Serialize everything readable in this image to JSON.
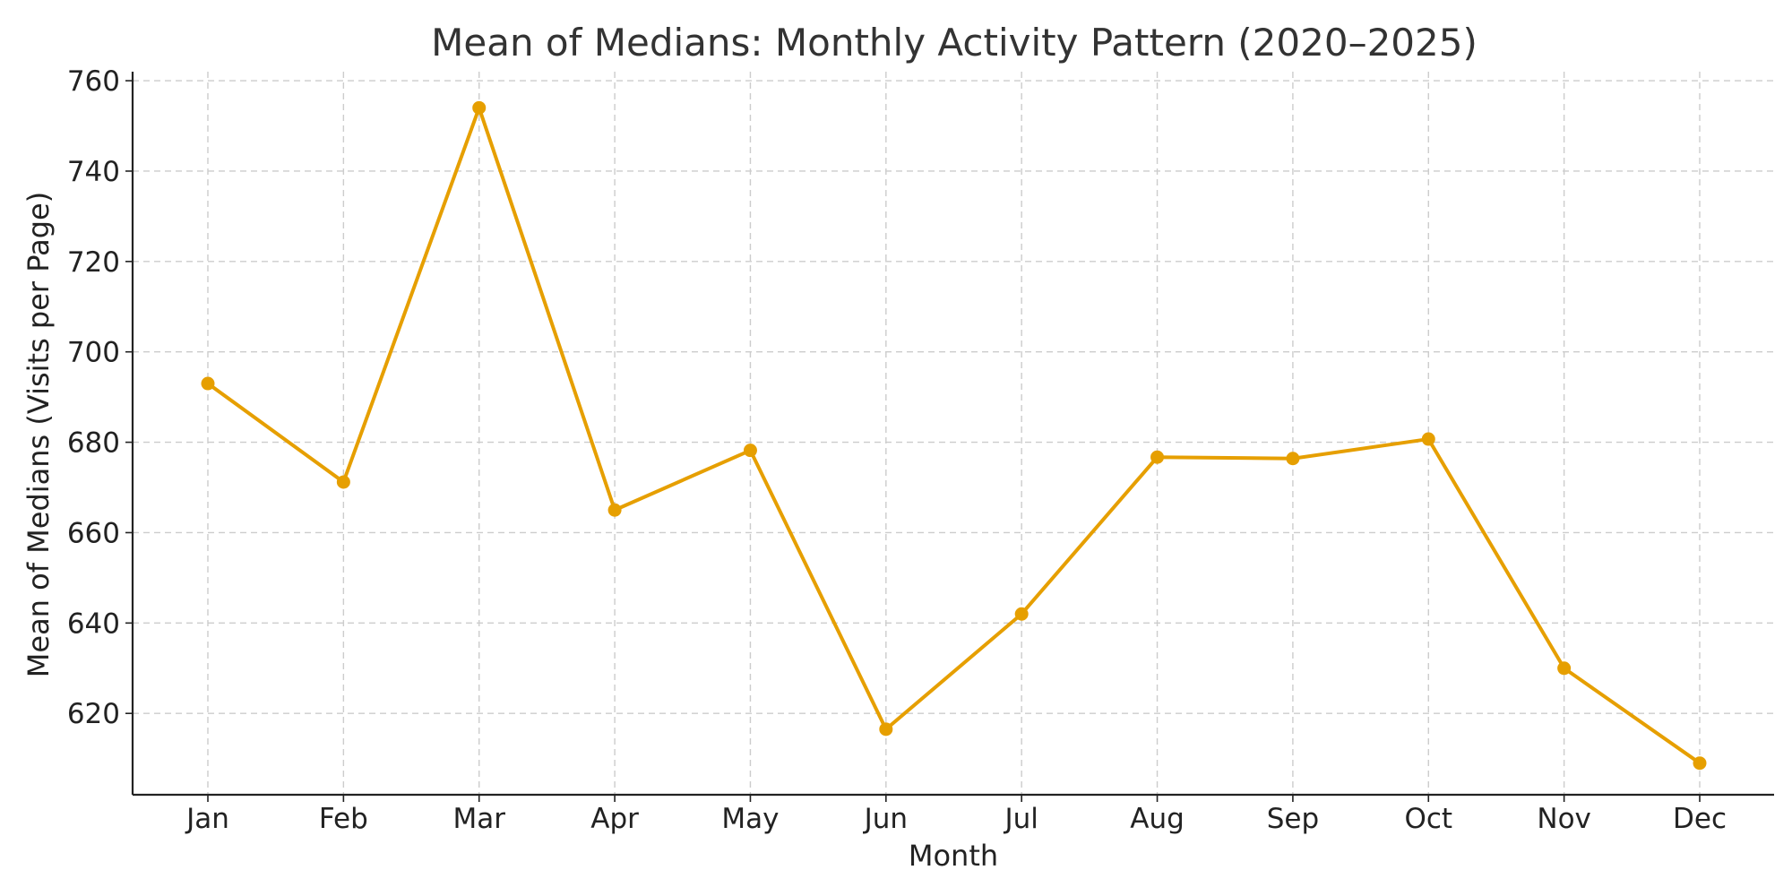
{
  "chart_data": {
    "type": "line",
    "title": "Mean of Medians: Monthly Activity Pattern (2020–2025)",
    "xlabel": "Month",
    "ylabel": "Mean of Medians (Visits per Page)",
    "categories": [
      "Jan",
      "Feb",
      "Mar",
      "Apr",
      "May",
      "Jun",
      "Jul",
      "Aug",
      "Sep",
      "Oct",
      "Nov",
      "Dec"
    ],
    "series": [
      {
        "color": "#E69F00",
        "values": [
          693.0,
          671.2,
          754.0,
          665.0,
          678.2,
          616.5,
          642.0,
          676.7,
          676.4,
          680.7,
          630.0,
          609.0
        ]
      }
    ],
    "ylim": [
      602,
      762
    ],
    "yticks": [
      620,
      640,
      660,
      680,
      700,
      720,
      740,
      760
    ],
    "grid": true,
    "legend": "none"
  }
}
